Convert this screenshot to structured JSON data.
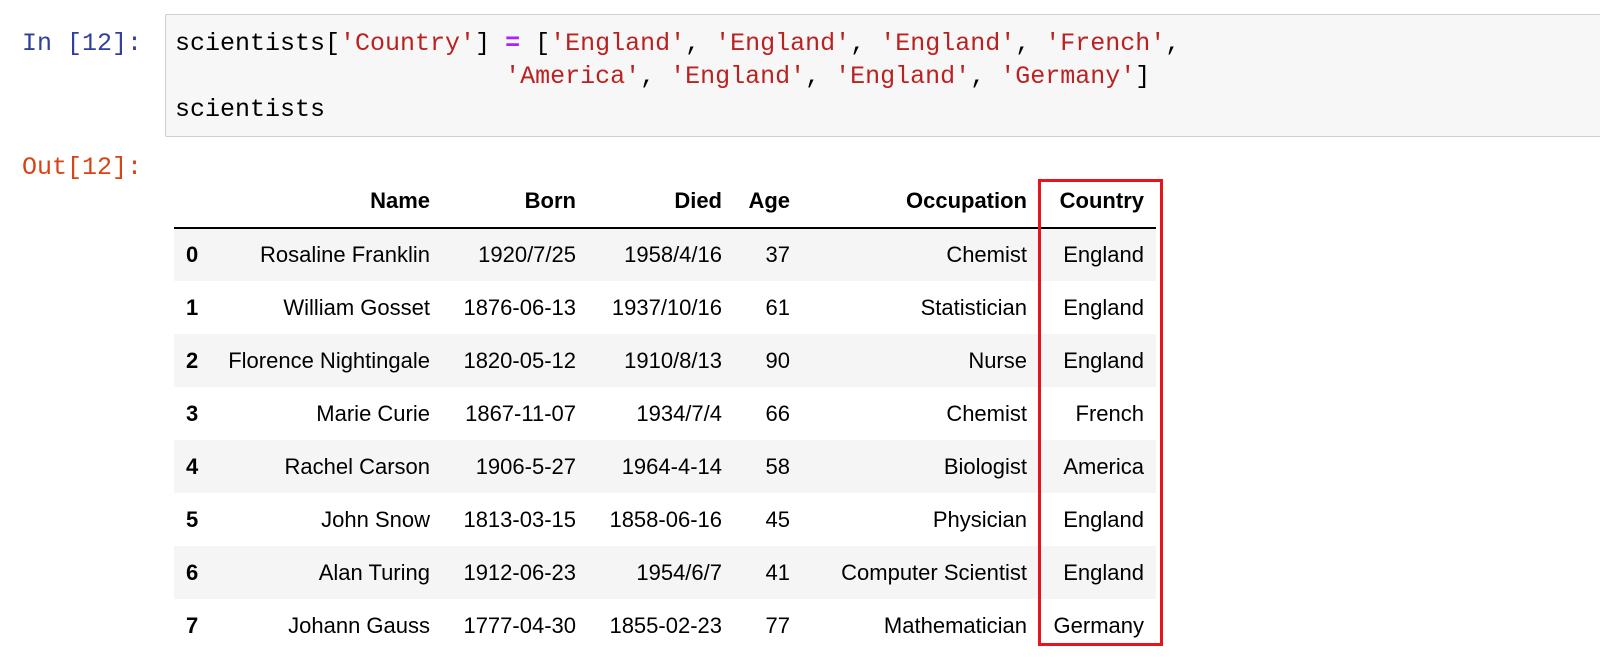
{
  "notebook": {
    "in_prompt": "In [12]:",
    "out_prompt": "Out[12]:",
    "code_lines": [
      [
        {
          "t": "scientists[",
          "c": "plain"
        },
        {
          "t": "'Country'",
          "c": "str"
        },
        {
          "t": "] ",
          "c": "plain"
        },
        {
          "t": "=",
          "c": "op"
        },
        {
          "t": " [",
          "c": "plain"
        },
        {
          "t": "'England'",
          "c": "str"
        },
        {
          "t": ", ",
          "c": "plain"
        },
        {
          "t": "'England'",
          "c": "str"
        },
        {
          "t": ", ",
          "c": "plain"
        },
        {
          "t": "'England'",
          "c": "str"
        },
        {
          "t": ", ",
          "c": "plain"
        },
        {
          "t": "'French'",
          "c": "str"
        },
        {
          "t": ",",
          "c": "plain"
        }
      ],
      [
        {
          "t": "                      ",
          "c": "plain"
        },
        {
          "t": "'America'",
          "c": "str"
        },
        {
          "t": ", ",
          "c": "plain"
        },
        {
          "t": "'England'",
          "c": "str"
        },
        {
          "t": ", ",
          "c": "plain"
        },
        {
          "t": "'England'",
          "c": "str"
        },
        {
          "t": ", ",
          "c": "plain"
        },
        {
          "t": "'Germany'",
          "c": "str"
        },
        {
          "t": "]",
          "c": "plain"
        }
      ],
      [
        {
          "t": "scientists",
          "c": "plain"
        }
      ]
    ],
    "syntax_colors": {
      "string": "#ba2121",
      "operator": "#aa22ff",
      "in_prompt": "#303f9f",
      "out_prompt": "#d84315"
    }
  },
  "table": {
    "index_header": "",
    "columns": [
      "Name",
      "Born",
      "Died",
      "Age",
      "Occupation",
      "Country"
    ],
    "rows": [
      {
        "index": "0",
        "values": [
          "Rosaline Franklin",
          "1920/7/25",
          "1958/4/16",
          "37",
          "Chemist",
          "England"
        ]
      },
      {
        "index": "1",
        "values": [
          "William Gosset",
          "1876-06-13",
          "1937/10/16",
          "61",
          "Statistician",
          "England"
        ]
      },
      {
        "index": "2",
        "values": [
          "Florence Nightingale",
          "1820-05-12",
          "1910/8/13",
          "90",
          "Nurse",
          "England"
        ]
      },
      {
        "index": "3",
        "values": [
          "Marie Curie",
          "1867-11-07",
          "1934/7/4",
          "66",
          "Chemist",
          "French"
        ]
      },
      {
        "index": "4",
        "values": [
          "Rachel Carson",
          "1906-5-27",
          "1964-4-14",
          "58",
          "Biologist",
          "America"
        ]
      },
      {
        "index": "5",
        "values": [
          "John Snow",
          "1813-03-15",
          "1858-06-16",
          "45",
          "Physician",
          "England"
        ]
      },
      {
        "index": "6",
        "values": [
          "Alan Turing",
          "1912-06-23",
          "1954/6/7",
          "41",
          "Computer Scientist",
          "England"
        ]
      },
      {
        "index": "7",
        "values": [
          "Johann Gauss",
          "1777-04-30",
          "1855-02-23",
          "77",
          "Mathematician",
          "Germany"
        ]
      }
    ],
    "highlighted_column": "Country",
    "highlight_color": "#e8141c"
  }
}
